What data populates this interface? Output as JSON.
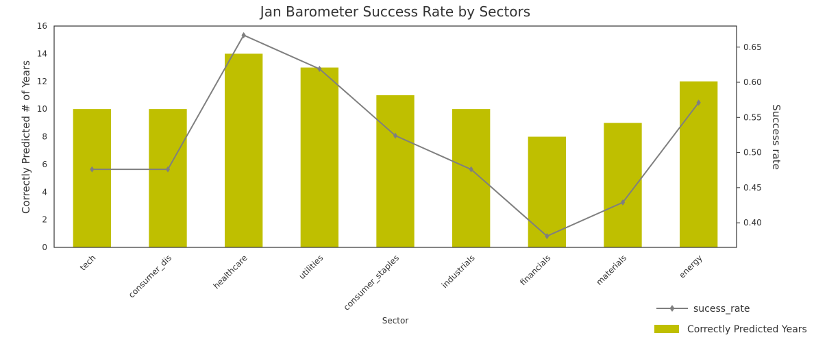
{
  "chart_data": {
    "type": "bar",
    "title": "Jan Barometer Success Rate by Sectors",
    "xlabel": "Sector",
    "ylabel": "Correctly Predicted # of Years",
    "y2label": "Success rate",
    "categories": [
      "tech",
      "consumer_dis",
      "healthcare",
      "utilities",
      "consumer_staples",
      "industrials",
      "financials",
      "materials",
      "energy"
    ],
    "series": [
      {
        "name": "Correctly Predicted Years",
        "type": "bar",
        "axis": "left",
        "color": "#bfbf00",
        "values": [
          10,
          10,
          14,
          13,
          11,
          10,
          8,
          9,
          12
        ]
      },
      {
        "name": "sucess_rate",
        "type": "line",
        "axis": "right",
        "color": "#7f7f7f",
        "marker": "diamond",
        "values": [
          0.476,
          0.476,
          0.667,
          0.619,
          0.524,
          0.476,
          0.381,
          0.429,
          0.571
        ]
      }
    ],
    "ylim": [
      0,
      16
    ],
    "y2lim": [
      0.365,
      0.68
    ],
    "yticks": [
      0,
      2,
      4,
      6,
      8,
      10,
      12,
      14,
      16
    ],
    "y2ticks": [
      0.4,
      0.45,
      0.5,
      0.55,
      0.6,
      0.65
    ],
    "y2ticklabels": [
      "0.40",
      "0.45",
      "0.50",
      "0.55",
      "0.60",
      "0.65"
    ],
    "grid": false,
    "legend_position": "bottom-right",
    "xtick_rotation": 45
  }
}
